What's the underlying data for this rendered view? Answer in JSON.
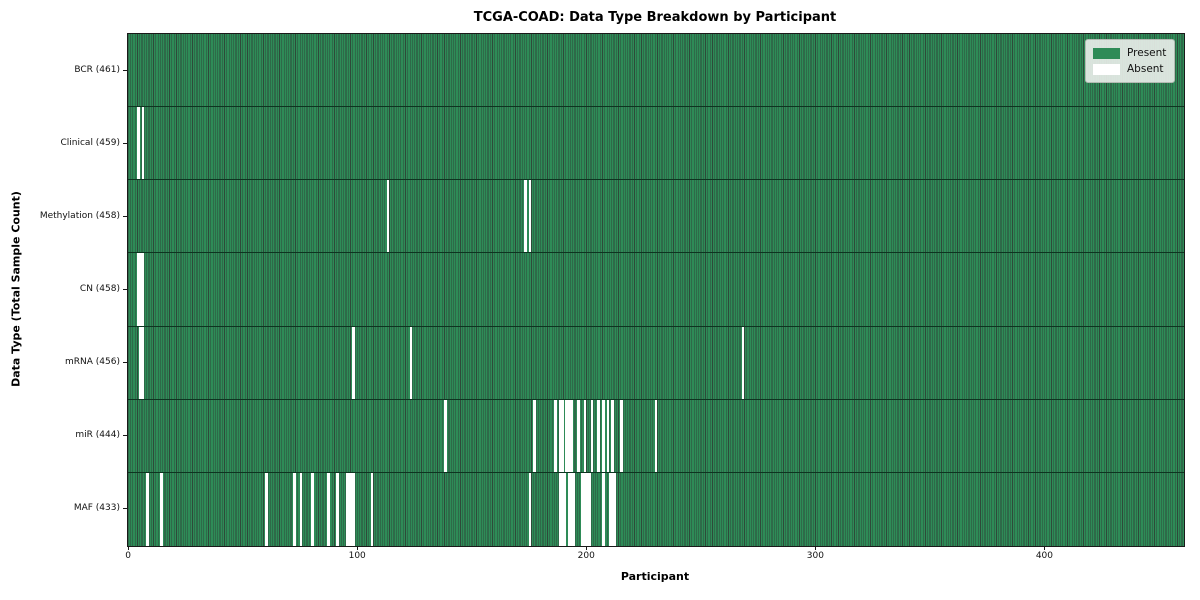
{
  "chart_data": {
    "type": "heatmap",
    "title": "TCGA-COAD: Data Type Breakdown by Participant",
    "xlabel": "Participant",
    "ylabel": "Data Type (Total Sample Count)",
    "x_ticks": [
      0,
      100,
      200,
      300,
      400
    ],
    "x_range": [
      -0.5,
      460.5
    ],
    "n_participants": 461,
    "grid": false,
    "present_color": "#2e8b57",
    "absent_color": "#ffffff",
    "bar_edge_color": "#0d3520",
    "legend": {
      "position": "upper right",
      "entries": [
        {
          "label": "Present",
          "color": "#2e8b57"
        },
        {
          "label": "Absent",
          "color": "#ffffff"
        }
      ]
    },
    "rows": [
      {
        "data_type": "BCR",
        "label": "BCR (461)",
        "present_count": 461,
        "absent_participants": []
      },
      {
        "data_type": "Clinical",
        "label": "Clinical (459)",
        "present_count": 459,
        "absent_participants": [
          4,
          6
        ]
      },
      {
        "data_type": "Methylation",
        "label": "Methylation (458)",
        "present_count": 458,
        "absent_participants": [
          113,
          173,
          175
        ]
      },
      {
        "data_type": "CN",
        "label": "CN (458)",
        "present_count": 458,
        "absent_participants": [
          4,
          5,
          6
        ]
      },
      {
        "data_type": "mRNA",
        "label": "mRNA (456)",
        "present_count": 456,
        "absent_participants": [
          5,
          6,
          98,
          123,
          268
        ]
      },
      {
        "data_type": "miR",
        "label": "miR (444)",
        "present_count": 444,
        "absent_participants": [
          138,
          177,
          186,
          188,
          189,
          191,
          192,
          193,
          196,
          199,
          202,
          205,
          207,
          209,
          211,
          215,
          230
        ]
      },
      {
        "data_type": "MAF",
        "label": "MAF (433)",
        "present_count": 433,
        "absent_participants": [
          8,
          14,
          60,
          72,
          75,
          80,
          87,
          91,
          95,
          96,
          97,
          98,
          106,
          175,
          188,
          189,
          190,
          192,
          193,
          194,
          198,
          199,
          200,
          201,
          207,
          210,
          211,
          212
        ]
      }
    ]
  }
}
